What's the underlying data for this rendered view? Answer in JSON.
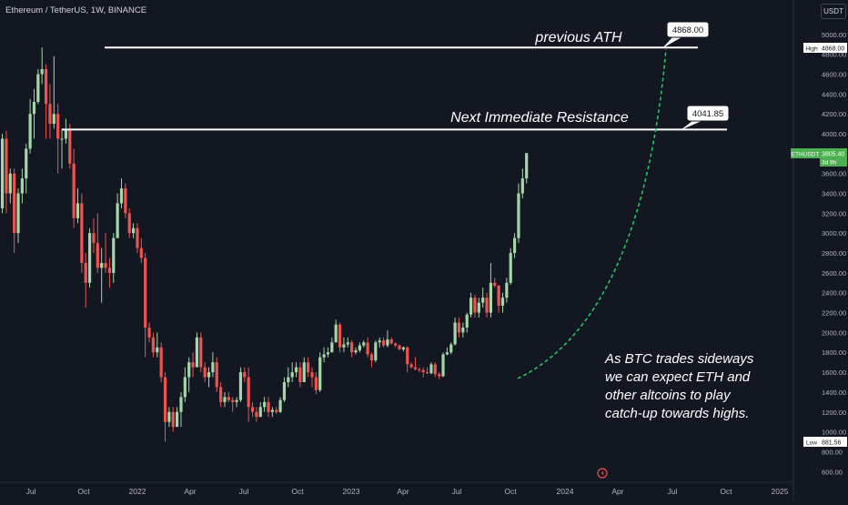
{
  "header": {
    "title": "Ethereum / TetherUS, 1W, BINANCE",
    "currency": "USDT"
  },
  "price_axis": {
    "ticks": [
      "5000.00",
      "4800.00",
      "4600.00",
      "4400.00",
      "4200.00",
      "4000.00",
      "3600.00",
      "3400.00",
      "3200.00",
      "3000.00",
      "2800.00",
      "2600.00",
      "2400.00",
      "2200.00",
      "2000.00",
      "1800.00",
      "1600.00",
      "1400.00",
      "1200.00",
      "1000.00",
      "800.00",
      "600.00"
    ],
    "high_label": "High",
    "high_value": "4868.00",
    "low_label": "Low",
    "low_value": "881.56",
    "symbol_label": "ETHUSDT",
    "last_price": "3805.40",
    "countdown": "3d 9h"
  },
  "time_axis": {
    "ticks": [
      "Jul",
      "Oct",
      "2022",
      "Apr",
      "Jul",
      "Oct",
      "2023",
      "Apr",
      "Jul",
      "Oct",
      "2024",
      "Apr",
      "Jul",
      "Oct",
      "2025"
    ]
  },
  "annotations": {
    "ath_text": "previous ATH",
    "ath_value": "4868.00",
    "resistance_text": "Next Immediate Resistance",
    "resistance_value": "4041.85",
    "note_lines": [
      "As BTC trades sideways",
      "we can expect ETH and",
      "other altcoins to play",
      "catch-up towards highs."
    ]
  },
  "colors": {
    "up": "#a5d6a7",
    "down": "#ef5350",
    "projection": "#22c55e",
    "last_price": "#4caf50"
  },
  "chart_data": {
    "type": "candlestick",
    "title": "Ethereum / TetherUS, 1W, BINANCE",
    "interval": "1W",
    "x_range": [
      "2021-06",
      "2025-02"
    ],
    "ylim": [
      550,
      5100
    ],
    "candles": [
      [
        "2021-06-07",
        2500,
        2580,
        2200,
        2280
      ],
      [
        "2021-06-14",
        2280,
        2400,
        1900,
        2000
      ],
      [
        "2021-06-21",
        2000,
        2250,
        1750,
        2180
      ],
      [
        "2021-06-28",
        2180,
        2400,
        2050,
        2300
      ],
      [
        "2021-07-05",
        2300,
        2350,
        2050,
        2100
      ],
      [
        "2021-07-12",
        2100,
        2150,
        1750,
        1900
      ],
      [
        "2021-07-19",
        1900,
        2300,
        1720,
        2200
      ],
      [
        "2021-07-26",
        2200,
        2700,
        2150,
        2600
      ],
      [
        "2021-08-02",
        2600,
        3050,
        2550,
        2950
      ],
      [
        "2021-08-09",
        2950,
        3350,
        2900,
        3300
      ],
      [
        "2021-08-16",
        3300,
        3350,
        2950,
        3200
      ],
      [
        "2021-08-23",
        3200,
        3300,
        3000,
        3250
      ],
      [
        "2021-08-30",
        3250,
        4000,
        3200,
        3950
      ],
      [
        "2021-09-06",
        3950,
        4030,
        3200,
        3400
      ],
      [
        "2021-09-13",
        3400,
        3650,
        3300,
        3600
      ],
      [
        "2021-09-20",
        3600,
        3650,
        2800,
        3000
      ],
      [
        "2021-09-27",
        3000,
        3450,
        2900,
        3400
      ],
      [
        "2021-10-04",
        3400,
        3650,
        3300,
        3550
      ],
      [
        "2021-10-11",
        3550,
        3900,
        3400,
        3850
      ],
      [
        "2021-10-18",
        3850,
        4350,
        3800,
        4200
      ],
      [
        "2021-10-25",
        4200,
        4450,
        3950,
        4320
      ],
      [
        "2021-11-01",
        4320,
        4650,
        4300,
        4600
      ],
      [
        "2021-11-08",
        4600,
        4868,
        4500,
        4650
      ],
      [
        "2021-11-15",
        4650,
        4700,
        3950,
        4300
      ],
      [
        "2021-11-22",
        4300,
        4500,
        3950,
        4100
      ],
      [
        "2021-11-29",
        4100,
        4780,
        4050,
        4200
      ],
      [
        "2021-12-06",
        4200,
        4300,
        3600,
        3950
      ],
      [
        "2021-12-13",
        3950,
        4050,
        3650,
        3950
      ],
      [
        "2021-12-20",
        3950,
        4150,
        3900,
        4050
      ],
      [
        "2021-12-27",
        4050,
        4100,
        3650,
        3700
      ],
      [
        "2022-01-03",
        3700,
        3850,
        3050,
        3150
      ],
      [
        "2022-01-10",
        3150,
        3450,
        3100,
        3300
      ],
      [
        "2022-01-17",
        3300,
        3400,
        2600,
        2700
      ],
      [
        "2022-01-24",
        2700,
        2800,
        2250,
        2500
      ],
      [
        "2022-01-31",
        2500,
        3050,
        2450,
        3000
      ],
      [
        "2022-02-07",
        3000,
        3150,
        2800,
        2900
      ],
      [
        "2022-02-14",
        2900,
        3200,
        2600,
        2650
      ],
      [
        "2022-02-21",
        2650,
        2850,
        2300,
        2700
      ],
      [
        "2022-02-28",
        2700,
        3000,
        2600,
        2650
      ],
      [
        "2022-03-07",
        2650,
        2750,
        2450,
        2600
      ],
      [
        "2022-03-14",
        2600,
        3000,
        2500,
        2950
      ],
      [
        "2022-03-21",
        2950,
        3400,
        2950,
        3300
      ],
      [
        "2022-03-28",
        3300,
        3550,
        3250,
        3450
      ],
      [
        "2022-04-04",
        3450,
        3500,
        3150,
        3200
      ],
      [
        "2022-04-11",
        3200,
        3250,
        2950,
        3000
      ],
      [
        "2022-04-18",
        3000,
        3100,
        2950,
        3050
      ],
      [
        "2022-04-25",
        3050,
        3100,
        2800,
        2850
      ],
      [
        "2022-05-02",
        2850,
        2950,
        2700,
        2750
      ],
      [
        "2022-05-09",
        2750,
        2800,
        1750,
        2050
      ],
      [
        "2022-05-16",
        2050,
        2100,
        1900,
        1950
      ],
      [
        "2022-05-23",
        1950,
        2000,
        1750,
        1800
      ],
      [
        "2022-05-30",
        1800,
        2000,
        1750,
        1850
      ],
      [
        "2022-06-06",
        1850,
        1900,
        1500,
        1550
      ],
      [
        "2022-06-13",
        1550,
        1600,
        900,
        1100
      ],
      [
        "2022-06-20",
        1100,
        1250,
        1050,
        1200
      ],
      [
        "2022-06-27",
        1200,
        1250,
        1000,
        1050
      ],
      [
        "2022-07-04",
        1050,
        1250,
        1050,
        1200
      ],
      [
        "2022-07-11",
        1200,
        1400,
        1050,
        1350
      ],
      [
        "2022-07-18",
        1350,
        1650,
        1300,
        1550
      ],
      [
        "2022-07-25",
        1550,
        1750,
        1400,
        1700
      ],
      [
        "2022-08-01",
        1700,
        1800,
        1550,
        1650
      ],
      [
        "2022-08-08",
        1650,
        2000,
        1650,
        1950
      ],
      [
        "2022-08-15",
        1950,
        2000,
        1600,
        1650
      ],
      [
        "2022-08-22",
        1650,
        1700,
        1500,
        1550
      ],
      [
        "2022-08-29",
        1550,
        1650,
        1450,
        1600
      ],
      [
        "2022-09-05",
        1600,
        1800,
        1550,
        1700
      ],
      [
        "2022-09-12",
        1700,
        1750,
        1400,
        1450
      ],
      [
        "2022-09-19",
        1450,
        1500,
        1250,
        1300
      ],
      [
        "2022-09-26",
        1300,
        1400,
        1250,
        1350
      ],
      [
        "2022-10-03",
        1350,
        1400,
        1300,
        1320
      ],
      [
        "2022-10-10",
        1320,
        1350,
        1200,
        1300
      ],
      [
        "2022-10-17",
        1300,
        1350,
        1250,
        1320
      ],
      [
        "2022-10-24",
        1320,
        1650,
        1300,
        1600
      ],
      [
        "2022-10-31",
        1600,
        1650,
        1500,
        1550
      ],
      [
        "2022-11-07",
        1550,
        1650,
        1100,
        1250
      ],
      [
        "2022-11-14",
        1250,
        1300,
        1150,
        1200
      ],
      [
        "2022-11-21",
        1200,
        1250,
        1100,
        1150
      ],
      [
        "2022-11-28",
        1150,
        1300,
        1150,
        1250
      ],
      [
        "2022-12-05",
        1250,
        1350,
        1200,
        1300
      ],
      [
        "2022-12-12",
        1300,
        1350,
        1150,
        1200
      ],
      [
        "2022-12-19",
        1200,
        1250,
        1150,
        1220
      ],
      [
        "2022-12-26",
        1220,
        1250,
        1180,
        1200
      ],
      [
        "2023-01-02",
        1200,
        1350,
        1190,
        1320
      ],
      [
        "2023-01-09",
        1320,
        1550,
        1300,
        1500
      ],
      [
        "2023-01-16",
        1500,
        1650,
        1450,
        1550
      ],
      [
        "2023-01-23",
        1550,
        1700,
        1500,
        1600
      ],
      [
        "2023-01-30",
        1600,
        1700,
        1550,
        1650
      ],
      [
        "2023-02-06",
        1650,
        1700,
        1450,
        1500
      ],
      [
        "2023-02-13",
        1500,
        1750,
        1500,
        1700
      ],
      [
        "2023-02-20",
        1700,
        1750,
        1550,
        1600
      ],
      [
        "2023-02-27",
        1600,
        1650,
        1450,
        1550
      ],
      [
        "2023-03-06",
        1550,
        1600,
        1380,
        1420
      ],
      [
        "2023-03-13",
        1420,
        1800,
        1400,
        1750
      ],
      [
        "2023-03-20",
        1750,
        1850,
        1700,
        1780
      ],
      [
        "2023-03-27",
        1780,
        1850,
        1750,
        1800
      ],
      [
        "2023-04-03",
        1800,
        1950,
        1800,
        1900
      ],
      [
        "2023-04-10",
        1900,
        2130,
        1900,
        2080
      ],
      [
        "2023-04-17",
        2080,
        2100,
        1800,
        1850
      ],
      [
        "2023-04-24",
        1850,
        1950,
        1800,
        1880
      ],
      [
        "2023-05-01",
        1880,
        1950,
        1850,
        1900
      ],
      [
        "2023-05-08",
        1900,
        1920,
        1750,
        1800
      ],
      [
        "2023-05-15",
        1800,
        1850,
        1780,
        1820
      ],
      [
        "2023-05-22",
        1820,
        1900,
        1800,
        1870
      ],
      [
        "2023-05-29",
        1870,
        1920,
        1850,
        1900
      ],
      [
        "2023-06-05",
        1900,
        1950,
        1750,
        1780
      ],
      [
        "2023-06-12",
        1780,
        1800,
        1650,
        1720
      ],
      [
        "2023-06-19",
        1720,
        1920,
        1700,
        1900
      ],
      [
        "2023-06-26",
        1900,
        1950,
        1850,
        1920
      ],
      [
        "2023-07-03",
        1920,
        1950,
        1850,
        1870
      ],
      [
        "2023-07-10",
        1870,
        2020,
        1850,
        1930
      ],
      [
        "2023-07-17",
        1930,
        1950,
        1880,
        1890
      ],
      [
        "2023-07-24",
        1890,
        1900,
        1850,
        1870
      ],
      [
        "2023-07-31",
        1870,
        1880,
        1820,
        1830
      ],
      [
        "2023-08-07",
        1830,
        1860,
        1810,
        1850
      ],
      [
        "2023-08-14",
        1850,
        1860,
        1600,
        1680
      ],
      [
        "2023-08-21",
        1680,
        1700,
        1640,
        1650
      ],
      [
        "2023-08-28",
        1650,
        1750,
        1620,
        1630
      ],
      [
        "2023-09-04",
        1630,
        1650,
        1600,
        1620
      ],
      [
        "2023-09-11",
        1620,
        1650,
        1550,
        1600
      ],
      [
        "2023-09-18",
        1600,
        1650,
        1580,
        1590
      ],
      [
        "2023-09-25",
        1590,
        1700,
        1580,
        1680
      ],
      [
        "2023-10-02",
        1680,
        1700,
        1550,
        1580
      ],
      [
        "2023-10-09",
        1580,
        1600,
        1530,
        1560
      ],
      [
        "2023-10-16",
        1560,
        1800,
        1550,
        1780
      ],
      [
        "2023-10-23",
        1780,
        1850,
        1770,
        1800
      ],
      [
        "2023-10-30",
        1800,
        1900,
        1780,
        1880
      ],
      [
        "2023-11-06",
        1880,
        2150,
        1870,
        2100
      ],
      [
        "2023-11-13",
        2100,
        2150,
        1950,
        2000
      ],
      [
        "2023-11-20",
        2000,
        2100,
        1950,
        2050
      ],
      [
        "2023-11-27",
        2050,
        2200,
        2000,
        2180
      ],
      [
        "2023-12-04",
        2180,
        2400,
        2150,
        2350
      ],
      [
        "2023-12-11",
        2350,
        2380,
        2150,
        2200
      ],
      [
        "2023-12-18",
        2200,
        2350,
        2150,
        2300
      ],
      [
        "2023-12-25",
        2300,
        2450,
        2250,
        2350
      ],
      [
        "2024-01-01",
        2350,
        2400,
        2150,
        2200
      ],
      [
        "2024-01-08",
        2200,
        2700,
        2150,
        2500
      ],
      [
        "2024-01-15",
        2500,
        2550,
        2450,
        2470
      ],
      [
        "2024-01-22",
        2470,
        2480,
        2200,
        2270
      ],
      [
        "2024-01-29",
        2270,
        2400,
        2200,
        2350
      ],
      [
        "2024-02-05",
        2350,
        2550,
        2300,
        2500
      ],
      [
        "2024-02-12",
        2500,
        2850,
        2480,
        2800
      ],
      [
        "2024-02-19",
        2800,
        3000,
        2750,
        2950
      ],
      [
        "2024-02-26",
        2950,
        3500,
        2900,
        3400
      ],
      [
        "2024-03-04",
        3400,
        3650,
        3350,
        3550
      ],
      [
        "2024-03-11",
        3550,
        3805.4,
        3500,
        3805.4
      ]
    ],
    "last_price": 3805.4,
    "levels": [
      {
        "label": "previous ATH",
        "value": 4868.0
      },
      {
        "label": "Next Immediate Resistance",
        "value": 4041.85
      }
    ]
  }
}
